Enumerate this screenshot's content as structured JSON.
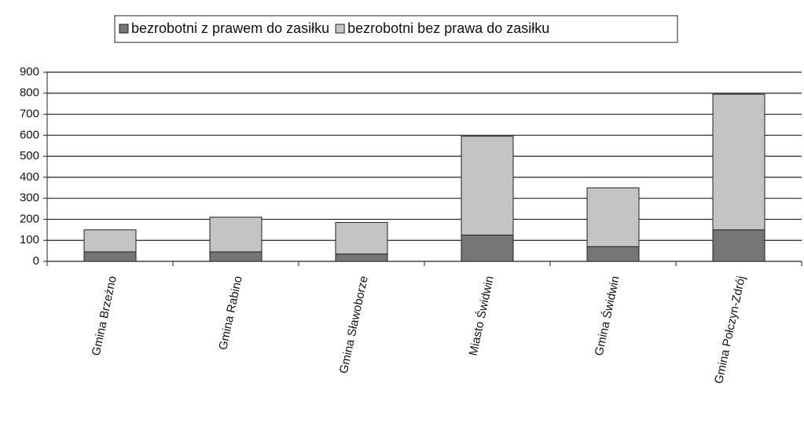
{
  "chart_data": {
    "type": "stacked_bar",
    "categories": [
      "Gmina Brzeżno",
      "Gmina Rabino",
      "Gmina Sławoborze",
      "Miasto Świdwin",
      "Gmina Świdwin",
      "Gmina Połczyn-Zdrój"
    ],
    "series": [
      {
        "name": "bezrobotni z prawem do zasiłku",
        "color": "#767676",
        "values": [
          45,
          45,
          35,
          125,
          70,
          150
        ]
      },
      {
        "name": "bezrobotni bez prawa do zasiłku",
        "color": "#c4c4c4",
        "values": [
          105,
          165,
          150,
          470,
          280,
          645
        ]
      }
    ],
    "ylim": [
      0,
      900
    ],
    "yticks": [
      0,
      100,
      200,
      300,
      400,
      500,
      600,
      700,
      800,
      900
    ],
    "grid": true,
    "legend": "top"
  }
}
